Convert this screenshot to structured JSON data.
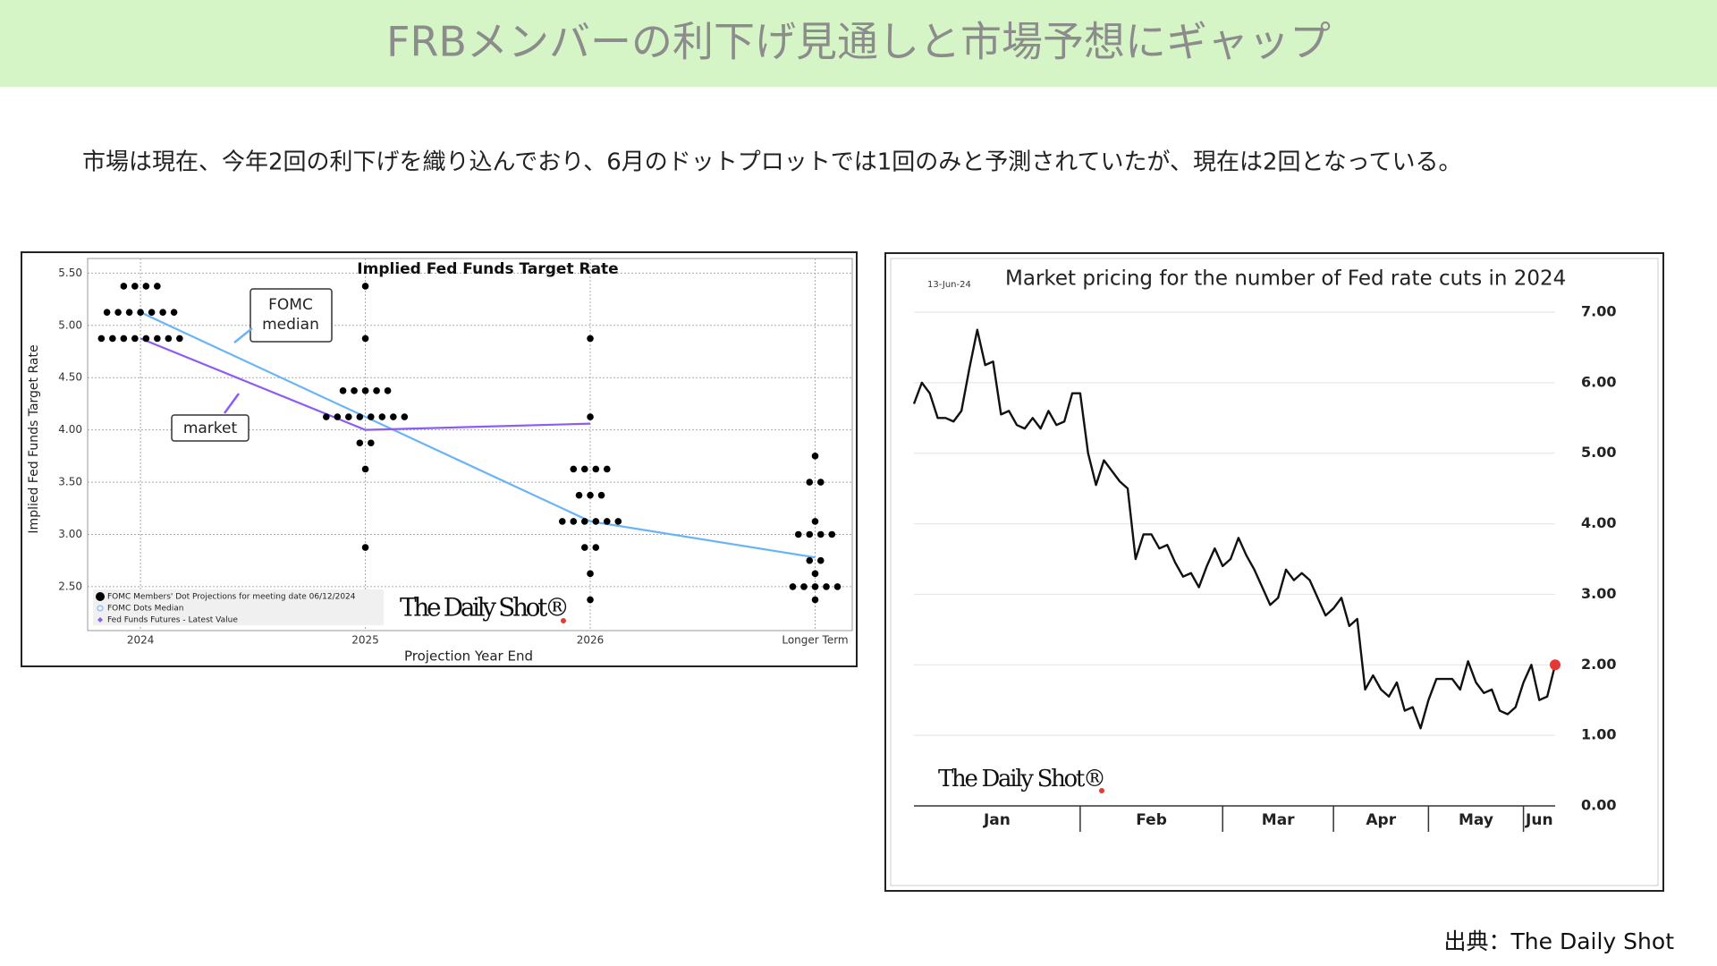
{
  "header": {
    "title": "FRBメンバーの利下げ見通しと市場予想にギャップ",
    "subtitle": "市場は現在、今年2回の利下げを織り込んでおり、6月のドットプロットでは1回のみと予測されていたが、現在は2回となっている。",
    "source": "出典：The Daily Shot"
  },
  "chart_data": [
    {
      "type": "dot",
      "title": "Implied Fed Funds Target Rate",
      "y_label": "Implied Fed Funds Target Rate",
      "x_label": "Projection Year End",
      "categories": [
        "2024",
        "2025",
        "2026",
        "Longer Term"
      ],
      "ylim": [
        2.08,
        5.64
      ],
      "yticks": [
        {
          "value": 2.5,
          "label": "2.50"
        },
        {
          "value": 3,
          "label": "3.00"
        },
        {
          "value": 3.5,
          "label": "3.50"
        },
        {
          "value": 4,
          "label": "4.00"
        },
        {
          "value": 4.5,
          "label": "4.50"
        },
        {
          "value": 5,
          "label": "5.00"
        },
        {
          "value": 5.5,
          "label": "5.50"
        }
      ],
      "grid": true,
      "dot_series": {
        "name": "FOMC Members' Dot Projections for meeting date 06/12/2024",
        "color": "#000000",
        "dots": [
          [
            {
              "rate": 5.375,
              "count": 4
            },
            {
              "rate": 5.125,
              "count": 7
            },
            {
              "rate": 4.875,
              "count": 8
            }
          ],
          [
            {
              "rate": 5.375,
              "count": 1
            },
            {
              "rate": 4.875,
              "count": 1
            },
            {
              "rate": 4.375,
              "count": 5
            },
            {
              "rate": 4.125,
              "count": 8
            },
            {
              "rate": 3.875,
              "count": 2
            },
            {
              "rate": 3.625,
              "count": 1
            },
            {
              "rate": 2.875,
              "count": 1
            }
          ],
          [
            {
              "rate": 4.875,
              "count": 1
            },
            {
              "rate": 4.125,
              "count": 1
            },
            {
              "rate": 3.625,
              "count": 4
            },
            {
              "rate": 3.375,
              "count": 3
            },
            {
              "rate": 3.125,
              "count": 6
            },
            {
              "rate": 2.875,
              "count": 2
            },
            {
              "rate": 2.625,
              "count": 1
            },
            {
              "rate": 2.375,
              "count": 1
            }
          ],
          [
            {
              "rate": 3.75,
              "count": 1
            },
            {
              "rate": 3.5,
              "count": 2
            },
            {
              "rate": 3.125,
              "count": 1
            },
            {
              "rate": 3.0,
              "count": 4
            },
            {
              "rate": 2.75,
              "count": 2
            },
            {
              "rate": 2.625,
              "count": 1
            },
            {
              "rate": 2.5,
              "count": 5
            },
            {
              "rate": 2.375,
              "count": 1
            }
          ]
        ]
      },
      "series": [
        {
          "name": "FOMC Dots Median",
          "color": "#6ab4f5",
          "values": [
            5.125,
            4.125,
            3.125,
            2.78
          ]
        },
        {
          "name": "Fed Funds Futures - Latest Value",
          "color": "#8b5cf6",
          "values": [
            4.875,
            4.0,
            4.06,
            null
          ]
        }
      ],
      "annotations": [
        {
          "lines": [
            "FOMC",
            "median"
          ]
        },
        {
          "lines": [
            "market"
          ]
        }
      ],
      "logo": "The Daily Shot®"
    },
    {
      "type": "line",
      "title": "Market pricing for the number of Fed rate cuts in 2024",
      "date_label": "13-Jun-24",
      "months": [
        "Jan",
        "Feb",
        "Mar",
        "Apr",
        "May",
        "Jun"
      ],
      "xticks": [
        21,
        39,
        53,
        65,
        77
      ],
      "xlim": [
        0,
        81
      ],
      "ylim": [
        0,
        7
      ],
      "yticks": [
        {
          "value": 0,
          "label": "0.00"
        },
        {
          "value": 1,
          "label": "1.00"
        },
        {
          "value": 2,
          "label": "2.00"
        },
        {
          "value": 3,
          "label": "3.00"
        },
        {
          "value": 4,
          "label": "4.00"
        },
        {
          "value": 5,
          "label": "5.00"
        },
        {
          "value": 6,
          "label": "6.00"
        },
        {
          "value": 7,
          "label": "7.00"
        }
      ],
      "grid": true,
      "color": "#111111",
      "end_marker_color": "#e53935",
      "values": [
        5.7,
        6.0,
        5.85,
        5.5,
        5.5,
        5.45,
        5.6,
        6.2,
        6.75,
        6.25,
        6.3,
        5.55,
        5.6,
        5.4,
        5.35,
        5.5,
        5.35,
        5.6,
        5.4,
        5.45,
        5.85,
        5.85,
        5.0,
        4.55,
        4.9,
        4.75,
        4.6,
        4.5,
        3.5,
        3.85,
        3.85,
        3.65,
        3.7,
        3.45,
        3.25,
        3.3,
        3.1,
        3.4,
        3.65,
        3.4,
        3.5,
        3.8,
        3.55,
        3.35,
        3.1,
        2.85,
        2.95,
        3.35,
        3.2,
        3.3,
        3.2,
        2.95,
        2.7,
        2.8,
        2.95,
        2.55,
        2.65,
        1.65,
        1.85,
        1.65,
        1.55,
        1.75,
        1.35,
        1.4,
        1.1,
        1.5,
        1.8,
        1.8,
        1.8,
        1.65,
        2.05,
        1.75,
        1.6,
        1.65,
        1.35,
        1.3,
        1.4,
        1.75,
        2.0,
        1.5,
        1.55,
        2.0
      ],
      "logo": "The Daily Shot®"
    }
  ]
}
